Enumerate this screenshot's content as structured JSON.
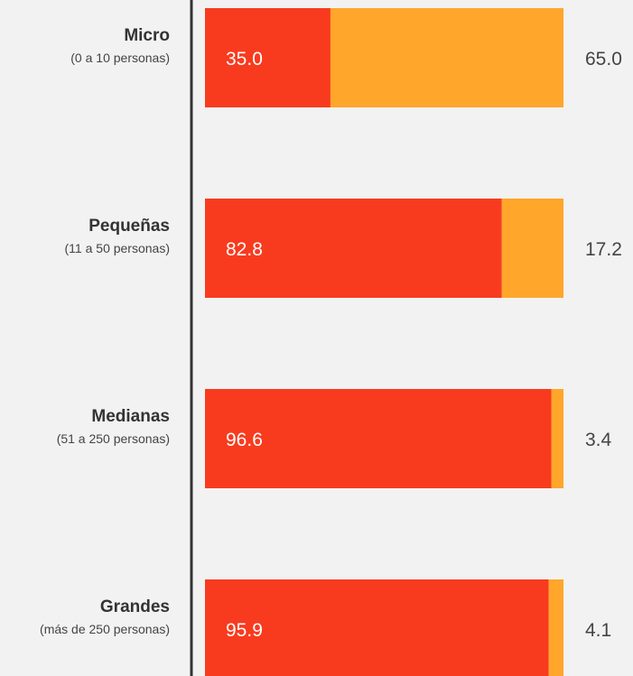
{
  "chart_data": {
    "type": "bar",
    "orientation": "horizontal",
    "stacked": true,
    "percent": true,
    "categories": [
      {
        "name": "Micro",
        "sublabel": "(0 a 10 personas)"
      },
      {
        "name": "Pequeñas",
        "sublabel": "(11 a 50 personas)"
      },
      {
        "name": "Medianas",
        "sublabel": "(51 a 250 personas)"
      },
      {
        "name": "Grandes",
        "sublabel": "(más de 250 personas)"
      }
    ],
    "series": [
      {
        "values": [
          35.0,
          82.8,
          96.6,
          95.9
        ],
        "labels": [
          "35.0",
          "82.8",
          "96.6",
          "95.9"
        ],
        "color": "#f83b1f"
      },
      {
        "values": [
          65.0,
          17.2,
          3.4,
          4.1
        ],
        "labels": [
          "65.0",
          "17.2",
          "3.4",
          "4.1"
        ],
        "color": "#ffa62b"
      }
    ],
    "xlim": [
      0,
      100
    ],
    "grid": false,
    "legend": "none",
    "axis_color": "#333333"
  }
}
